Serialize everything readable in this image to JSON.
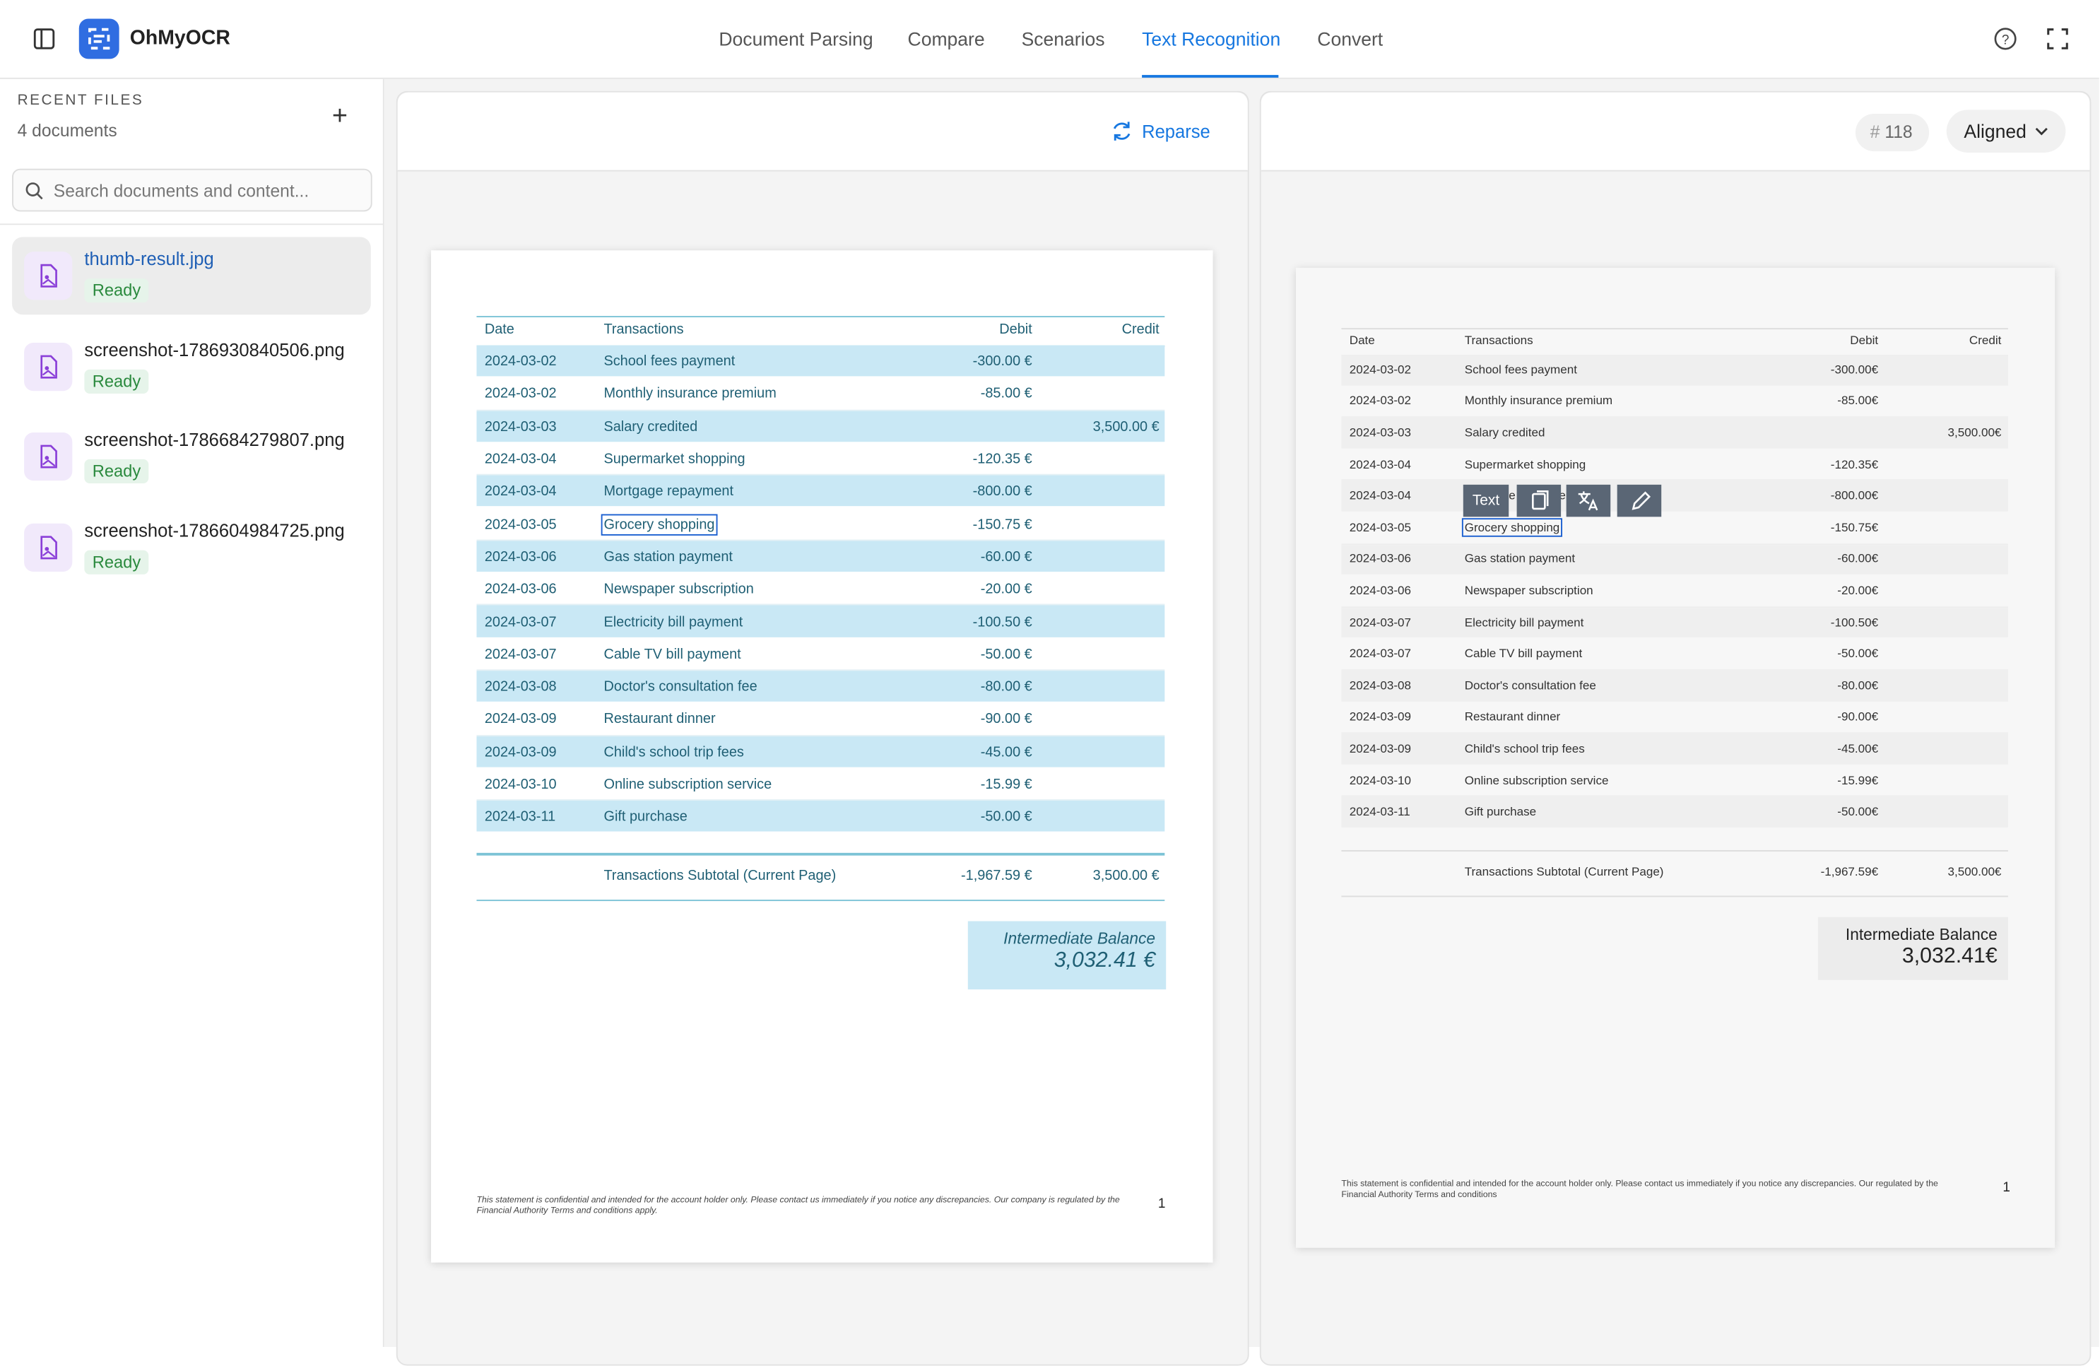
{
  "header": {
    "brand": "OhMyOCR",
    "tabs": [
      "Document Parsing",
      "Compare",
      "Scenarios",
      "Text Recognition",
      "Convert"
    ],
    "active_tab": 3
  },
  "sidebar": {
    "title": "RECENT FILES",
    "count": "4 documents",
    "search_placeholder": "Search documents and content...",
    "selected": 0,
    "files": [
      {
        "name": "thumb-result.jpg",
        "status": "Ready"
      },
      {
        "name": "screenshot-1786930840506.png",
        "status": "Ready"
      },
      {
        "name": "screenshot-1786684279807.png",
        "status": "Ready"
      },
      {
        "name": "screenshot-1786604984725.png",
        "status": "Ready"
      }
    ]
  },
  "left_panel": {
    "button": "Reparse",
    "document": {
      "columns": [
        "Date",
        "Transactions",
        "Debit",
        "Credit"
      ],
      "rows": [
        {
          "date": "2024-03-02",
          "desc": "School fees payment",
          "debit": "-300.00 €"
        },
        {
          "date": "2024-03-02",
          "desc": "Monthly insurance premium",
          "debit": "-85.00 €"
        },
        {
          "date": "2024-03-03",
          "desc": "Salary credited",
          "credit": "3,500.00 €"
        },
        {
          "date": "2024-03-04",
          "desc": "Supermarket shopping",
          "debit": "-120.35 €"
        },
        {
          "date": "2024-03-04",
          "desc": "Mortgage repayment",
          "debit": "-800.00 €"
        },
        {
          "date": "2024-03-05",
          "desc": "Grocery shopping",
          "debit": "-150.75 €"
        },
        {
          "date": "2024-03-06",
          "desc": "Gas station payment",
          "debit": "-60.00 €"
        },
        {
          "date": "2024-03-06",
          "desc": "Newspaper subscription",
          "debit": "-20.00 €"
        },
        {
          "date": "2024-03-07",
          "desc": "Electricity bill payment",
          "debit": "-100.50 €"
        },
        {
          "date": "2024-03-07",
          "desc": "Cable TV bill payment",
          "debit": "-50.00 €"
        },
        {
          "date": "2024-03-08",
          "desc": "Doctor's consultation fee",
          "debit": "-80.00 €"
        },
        {
          "date": "2024-03-09",
          "desc": "Restaurant dinner",
          "debit": "-90.00 €"
        },
        {
          "date": "2024-03-09",
          "desc": "Child's school trip fees",
          "debit": "-45.00 €"
        },
        {
          "date": "2024-03-10",
          "desc": "Online subscription service",
          "debit": "-15.99 €"
        },
        {
          "date": "2024-03-11",
          "desc": "Gift purchase",
          "debit": "-50.00 €"
        }
      ],
      "subtotal": {
        "label": "Transactions Subtotal (Current Page)",
        "debit": "-1,967.59 €",
        "credit": "3,500.00 €"
      },
      "balance": {
        "label": "Intermediate Balance",
        "value": "3,032.41 €"
      },
      "footer": "This statement is confidential and intended for the account holder only. Please contact us immediately if you notice any discrepancies. Our company is regulated by the Financial Authority Terms and conditions apply.",
      "page": "1"
    }
  },
  "right_panel": {
    "count_icon": "#",
    "count": "118",
    "dropdown": "Aligned",
    "toolbar_label": "Text",
    "document": {
      "columns": [
        "Date",
        "Transactions",
        "Debit",
        "Credit"
      ],
      "rows": [
        {
          "date": "2024-03-02",
          "desc": "School fees payment",
          "debit": "-300.00€"
        },
        {
          "date": "2024-03-02",
          "desc": "Monthly insurance premium",
          "debit": "-85.00€"
        },
        {
          "date": "2024-03-03",
          "desc": "Salary credited",
          "credit": "3,500.00€"
        },
        {
          "date": "2024-03-04",
          "desc": "Supermarket shopping",
          "debit": "-120.35€"
        },
        {
          "date": "2024-03-04",
          "desc": "Mortgage repayment",
          "debit": "-800.00€"
        },
        {
          "date": "2024-03-05",
          "desc": "Grocery shopping",
          "debit": "-150.75€"
        },
        {
          "date": "2024-03-06",
          "desc": "Gas station payment",
          "debit": "-60.00€"
        },
        {
          "date": "2024-03-06",
          "desc": "Newspaper subscription",
          "debit": "-20.00€"
        },
        {
          "date": "2024-03-07",
          "desc": "Electricity bill payment",
          "debit": "-100.50€"
        },
        {
          "date": "2024-03-07",
          "desc": "Cable TV bill payment",
          "debit": "-50.00€"
        },
        {
          "date": "2024-03-08",
          "desc": "Doctor's consultation fee",
          "debit": "-80.00€"
        },
        {
          "date": "2024-03-09",
          "desc": "Restaurant dinner",
          "debit": "-90.00€"
        },
        {
          "date": "2024-03-09",
          "desc": "Child's school trip fees",
          "debit": "-45.00€"
        },
        {
          "date": "2024-03-10",
          "desc": "Online subscription service",
          "debit": "-15.99€"
        },
        {
          "date": "2024-03-11",
          "desc": "Gift purchase",
          "debit": "-50.00€"
        }
      ],
      "subtotal": {
        "label": "Transactions Subtotal (Current Page)",
        "debit": "-1,967.59€",
        "credit": "3,500.00€"
      },
      "balance": {
        "label": "Intermediate Balance",
        "value": "3,032.41€"
      },
      "footer": "This statement is confidential and intended for the account holder only. Please contact us immediately if you notice any discrepancies. Our regulated by the Financial Authority Terms and conditions",
      "page": "1"
    }
  }
}
